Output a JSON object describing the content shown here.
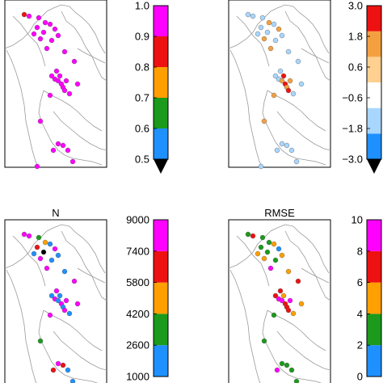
{
  "panels": [
    {
      "title": "",
      "colorbar": {
        "tick_labels": [
          "0.5",
          "0.6",
          "0.7",
          "0.8",
          "0.9",
          "1.0"
        ],
        "colors": [
          "#1e90ff",
          "#1b9a1b",
          "#ff9f00",
          "#ee1111",
          "#ff00ff"
        ],
        "extend_low": true
      }
    },
    {
      "title": "",
      "colorbar": {
        "tick_labels": [
          "−3.0",
          "−1.8",
          "−0.6",
          "0.6",
          "1.8",
          "3.0"
        ],
        "colors": [
          "#1e90ff",
          "#a8d6ff",
          "#ffffff",
          "#ffd090",
          "#f5a040",
          "#ee1111"
        ],
        "extend_low": true
      }
    },
    {
      "title": "N",
      "colorbar": {
        "tick_labels": [
          "1000",
          "2600",
          "4200",
          "5800",
          "7400",
          "9000"
        ],
        "colors": [
          "#1e90ff",
          "#1b9a1b",
          "#ff9f00",
          "#ee1111",
          "#ff00ff"
        ],
        "extend_low": false
      }
    },
    {
      "title": "RMSE",
      "colorbar": {
        "tick_labels": [
          "0",
          "2",
          "4",
          "6",
          "8",
          "10"
        ],
        "colors": [
          "#1e90ff",
          "#1b9a1b",
          "#ff9f00",
          "#ee1111",
          "#ff00ff"
        ],
        "extend_low": false
      }
    }
  ],
  "chart_data": [
    {
      "type": "scatter",
      "title": "",
      "colorbar_range": [
        0.5,
        1.0
      ],
      "dominant_category": "0.9–1.0 (magenta)",
      "values": [
        1.0,
        0.95,
        0.96,
        0.97,
        0.94,
        0.95,
        0.92,
        0.98,
        0.96,
        0.95,
        0.97,
        0.95,
        0.94,
        0.96,
        0.93,
        0.95,
        0.96,
        0.94,
        0.95,
        0.95,
        0.97,
        0.96,
        0.95,
        0.95,
        0.94,
        0.95,
        0.96,
        0.95,
        0.95,
        0.96,
        0.95,
        0.94,
        0.95,
        0.85
      ]
    },
    {
      "type": "scatter",
      "title": "",
      "colorbar_range": [
        -3.0,
        3.0
      ],
      "values": [
        -1.0,
        -1.2,
        0.9,
        -0.8,
        -1.1,
        0.8,
        -0.9,
        -1.0,
        -1.2,
        1.0,
        -0.9,
        0.8,
        -1.0,
        -0.8,
        -1.1,
        -0.9,
        -1.0,
        1.2,
        2.2,
        2.5,
        0.9,
        1.0,
        2.6,
        -0.9,
        1.1,
        -1.0,
        1.0,
        -0.8,
        -1.1,
        -1.0,
        -0.9,
        -1.0,
        -1.2,
        -1.0
      ]
    },
    {
      "type": "scatter",
      "title": "N",
      "colorbar_range": [
        1000,
        9000
      ],
      "values": [
        8000,
        3000,
        5000,
        6500,
        2500,
        8500,
        500,
        2000,
        1800,
        8200,
        1500,
        8600,
        1600,
        8300,
        8800,
        1400,
        8500,
        2000,
        1500,
        8700,
        1600,
        8600,
        8800,
        1700,
        8400,
        8500,
        3000,
        8200,
        7000,
        2100,
        6000,
        2500,
        8800,
        8600
      ]
    },
    {
      "type": "scatter",
      "title": "RMSE",
      "colorbar_range": [
        0,
        10
      ],
      "values": [
        7,
        3,
        2.5,
        2.8,
        5,
        1.5,
        2.5,
        5,
        4.5,
        5,
        2.5,
        8,
        5,
        6.5,
        7.5,
        6,
        8.5,
        9,
        5,
        6.5,
        7,
        8.5,
        6,
        5,
        2.5,
        5,
        2.5,
        3,
        2.5,
        2.5,
        8,
        3,
        2.5,
        2.5
      ]
    }
  ]
}
